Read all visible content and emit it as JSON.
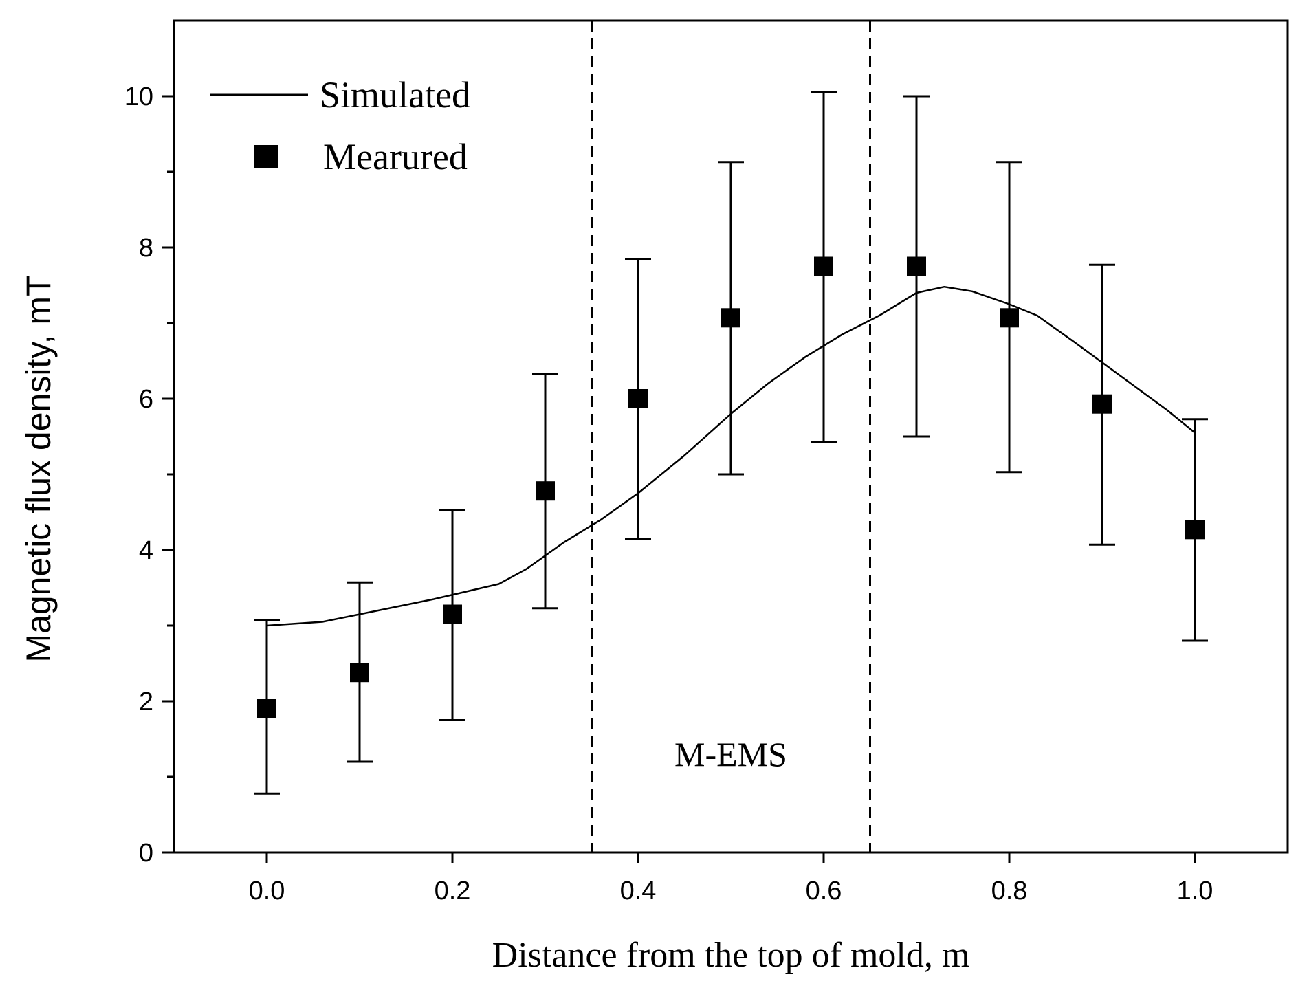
{
  "chart_data": {
    "type": "line+scatter",
    "title": "",
    "xlabel": "Distance from the top of mold,  m",
    "ylabel": "Magnetic flux density,  mT",
    "xlim": [
      -0.1,
      1.1
    ],
    "ylim": [
      0,
      11
    ],
    "x_ticks": [
      0.0,
      0.2,
      0.4,
      0.6,
      0.8,
      1.0
    ],
    "x_tick_labels": [
      "0.0",
      "0.2",
      "0.4",
      "0.6",
      "0.8",
      "1.0"
    ],
    "y_ticks": [
      0,
      2,
      4,
      6,
      8,
      10
    ],
    "y_tick_labels": [
      "0",
      "2",
      "4",
      "6",
      "8",
      "10"
    ],
    "y_minor_ticks": [
      1,
      3,
      5,
      7,
      9
    ],
    "grid": false,
    "legend_position": "top-left",
    "series": [
      {
        "name": "Simulated",
        "kind": "line",
        "x": [
          0.0,
          0.06,
          0.12,
          0.18,
          0.25,
          0.28,
          0.32,
          0.36,
          0.4,
          0.45,
          0.5,
          0.54,
          0.58,
          0.62,
          0.66,
          0.7,
          0.73,
          0.76,
          0.8,
          0.83,
          0.87,
          0.92,
          0.97,
          1.0
        ],
        "y": [
          3.0,
          3.05,
          3.2,
          3.35,
          3.55,
          3.75,
          4.1,
          4.4,
          4.75,
          5.25,
          5.8,
          6.2,
          6.55,
          6.85,
          7.1,
          7.4,
          7.48,
          7.42,
          7.25,
          7.1,
          6.75,
          6.3,
          5.85,
          5.55
        ]
      },
      {
        "name": "Mearured",
        "kind": "scatter",
        "marker": "square",
        "x": [
          0.0,
          0.1,
          0.2,
          0.3,
          0.4,
          0.5,
          0.6,
          0.7,
          0.8,
          0.9,
          1.0
        ],
        "y": [
          1.9,
          2.38,
          3.15,
          4.78,
          6.0,
          7.07,
          7.75,
          7.75,
          7.07,
          5.93,
          4.27
        ],
        "err_low": [
          0.78,
          1.2,
          1.75,
          3.23,
          4.15,
          5.0,
          5.43,
          5.5,
          5.03,
          4.07,
          2.8
        ],
        "err_high": [
          3.07,
          3.57,
          4.53,
          6.33,
          7.85,
          9.13,
          10.05,
          10.0,
          9.13,
          7.77,
          5.73
        ]
      }
    ],
    "vertical_lines": [
      0.35,
      0.65
    ],
    "annotations": [
      {
        "text": "M-EMS",
        "x": 0.5,
        "y": 1.3
      }
    ]
  }
}
